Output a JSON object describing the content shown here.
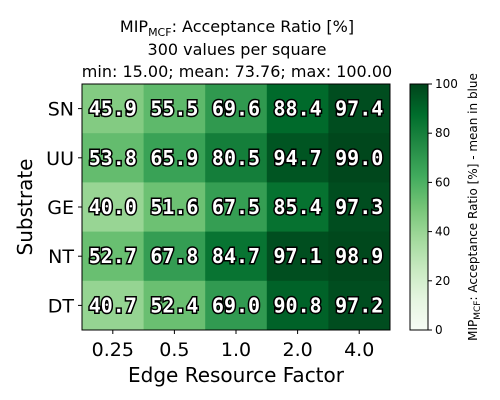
{
  "chart_data": {
    "type": "heatmap",
    "title": {
      "prefix": "MIP",
      "subscript": "MCF",
      "suffix": ": Acceptance Ratio [%]",
      "line2": "300 values per square",
      "line3": "min: 15.00; mean: 73.76; max: 100.00"
    },
    "xlabel": "Edge Resource Factor",
    "ylabel": "Substrate",
    "x_categories": [
      "0.25",
      "0.5",
      "1.0",
      "2.0",
      "4.0"
    ],
    "y_categories": [
      "SN",
      "UU",
      "GE",
      "NT",
      "DT"
    ],
    "values": [
      [
        45.9,
        55.5,
        69.6,
        88.4,
        97.4
      ],
      [
        53.8,
        65.9,
        80.5,
        94.7,
        99.0
      ],
      [
        40.0,
        51.6,
        67.5,
        85.4,
        97.3
      ],
      [
        52.7,
        67.8,
        84.7,
        97.1,
        98.9
      ],
      [
        40.7,
        52.4,
        69.0,
        90.8,
        97.2
      ]
    ],
    "value_format_decimals": 1,
    "colormap": "Greens",
    "colormap_stops": [
      "#f7fcf5",
      "#e5f5e0",
      "#c7e9c0",
      "#a1d99b",
      "#74c476",
      "#41ab5d",
      "#238b45",
      "#006d2c",
      "#00441b"
    ],
    "colorbar": {
      "min": 0,
      "max": 100,
      "ticks": [
        0,
        20,
        40,
        60,
        80,
        100
      ],
      "label_prefix": "MIP",
      "label_subscript": "MCF",
      "label_suffix": ": Acceptance Ratio [%] - mean in blue"
    }
  }
}
